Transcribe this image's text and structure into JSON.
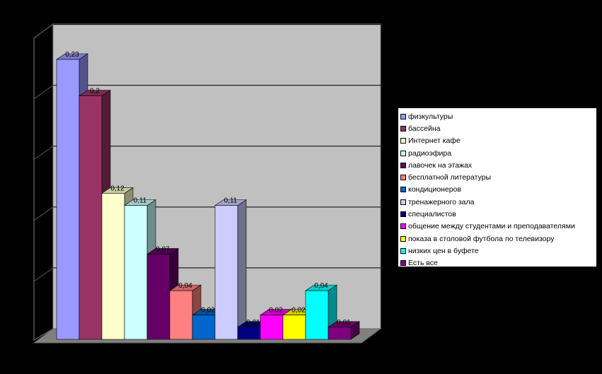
{
  "chart_data": {
    "type": "bar",
    "title": "",
    "xlabel": "",
    "ylabel": "",
    "ylim": [
      0,
      0.25
    ],
    "grid": true,
    "legend_position": "right",
    "series": [
      {
        "name": "физкультуры",
        "value": 0.23,
        "label": "0,23",
        "color": "#9999FF"
      },
      {
        "name": "бассейна",
        "value": 0.2,
        "label": "0,2",
        "color": "#993366"
      },
      {
        "name": "Интернет кафе",
        "value": 0.12,
        "label": "0,12",
        "color": "#FFFFCC"
      },
      {
        "name": "радиоэфира",
        "value": 0.11,
        "label": "0,11",
        "color": "#CCFFFF"
      },
      {
        "name": "лавочек на этажах",
        "value": 0.07,
        "label": "0,07",
        "color": "#660066"
      },
      {
        "name": "бесплатной литературы",
        "value": 0.04,
        "label": "0,04",
        "color": "#FF8080"
      },
      {
        "name": "кондиционеров",
        "value": 0.02,
        "label": "0,02",
        "color": "#0066CC"
      },
      {
        "name": "тренажерного зала",
        "value": 0.11,
        "label": "0,11",
        "color": "#CCCCFF"
      },
      {
        "name": "специалистов",
        "value": 0.01,
        "label": "0,01",
        "color": "#000080"
      },
      {
        "name": "общение между студентами и преподавателями",
        "value": 0.02,
        "label": "0,02",
        "color": "#FF00FF"
      },
      {
        "name": "показа в столовой футбола по телевизору",
        "value": 0.02,
        "label": "0,02",
        "color": "#FFFF00"
      },
      {
        "name": "низких цен в буфете",
        "value": 0.04,
        "label": "0,04",
        "color": "#00FFFF"
      },
      {
        "name": "Есть все",
        "value": 0.01,
        "label": "0,01",
        "color": "#800080"
      }
    ]
  }
}
